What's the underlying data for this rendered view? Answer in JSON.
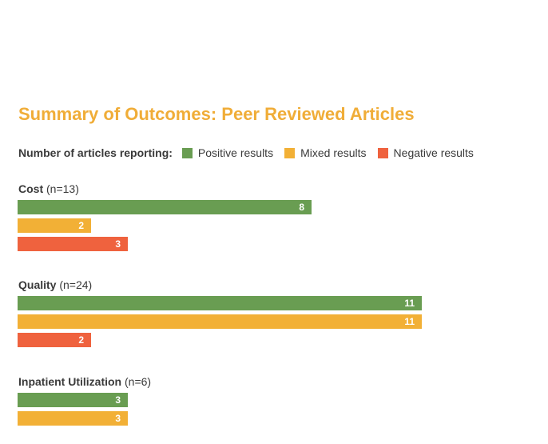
{
  "chart_data": {
    "type": "bar",
    "orientation": "horizontal",
    "title": "Summary of Outcomes: Peer Reviewed Articles",
    "legend_label": "Number of articles reporting:",
    "legend_placement": "top-left",
    "series": [
      {
        "name": "Positive results",
        "color": "#699d52"
      },
      {
        "name": "Mixed results",
        "color": "#f2b036"
      },
      {
        "name": "Negative results",
        "color": "#ef623e"
      }
    ],
    "groups": [
      {
        "name": "Cost",
        "n": "(n=13)",
        "values": [
          8,
          2,
          3
        ]
      },
      {
        "name": "Quality",
        "n": "(n=24)",
        "values": [
          11,
          11,
          2
        ]
      },
      {
        "name": "Inpatient Utilization",
        "n": "(n=6)",
        "values": [
          3,
          3
        ]
      }
    ],
    "xlim": [
      0,
      11
    ]
  }
}
